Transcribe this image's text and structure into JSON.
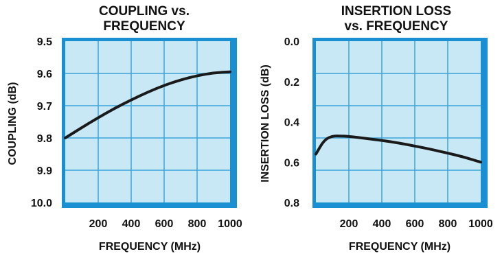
{
  "chart_data": [
    {
      "type": "line",
      "title": "COUPLING vs.",
      "subtitle": "FREQUENCY",
      "xlabel": "FREQUENCY (MHz)",
      "ylabel": "COUPLING (dB)",
      "x_ticks": [
        "200",
        "400",
        "600",
        "800",
        "1000"
      ],
      "y_ticks": [
        "9.5",
        "9.6",
        "9.7",
        "9.8",
        "9.9",
        "10.0"
      ],
      "xlim": [
        0,
        1000
      ],
      "ylim": [
        9.5,
        10.0
      ],
      "y_inverted": true,
      "grid": true,
      "series": [
        {
          "x": [
            0,
            100,
            200,
            300,
            400,
            500,
            600,
            700,
            800,
            900,
            1000
          ],
          "values": [
            9.8,
            9.768,
            9.737,
            9.708,
            9.682,
            9.658,
            9.637,
            9.62,
            9.607,
            9.598,
            9.595
          ]
        }
      ]
    },
    {
      "type": "line",
      "title": "INSERTION LOSS",
      "subtitle": "vs. FREQUENCY",
      "xlabel": "FREQUENCY (MHz)",
      "ylabel": "INSERTION LOSS (dB)",
      "x_ticks": [
        "200",
        "400",
        "600",
        "800",
        "1000"
      ],
      "y_ticks": [
        "0.0",
        "0.2",
        "0.4",
        "0.6",
        "0.8"
      ],
      "xlim": [
        0,
        1000
      ],
      "ylim": [
        0,
        0.8
      ],
      "y_inverted": true,
      "grid": true,
      "series": [
        {
          "x": [
            0,
            50,
            100,
            150,
            200,
            300,
            400,
            500,
            600,
            700,
            800,
            900,
            1000
          ],
          "values": [
            0.56,
            0.49,
            0.47,
            0.47,
            0.472,
            0.482,
            0.492,
            0.505,
            0.52,
            0.537,
            0.555,
            0.575,
            0.6
          ]
        }
      ]
    }
  ],
  "colors": {
    "plot_fill": "#c8e8f6",
    "grid": "#3aa4d8",
    "frame_edge": "#1a8fd2",
    "curve": "#1a1a1a"
  }
}
